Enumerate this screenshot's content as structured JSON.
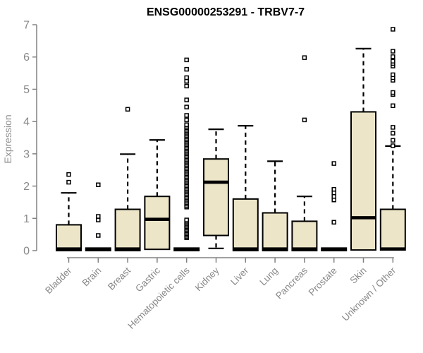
{
  "chart_data": {
    "type": "boxplot",
    "title": "ENSG00000253291 - TRBV7-7",
    "ylabel": "Expression",
    "xlabel": "",
    "ylim": [
      0,
      7
    ],
    "yticks": [
      0,
      1,
      2,
      3,
      4,
      5,
      6,
      7
    ],
    "grid": false,
    "legend": false,
    "colors": {
      "box_fill": "#ECE5C8",
      "box_stroke": "#000000",
      "median": "#000000",
      "whisker": "#000000",
      "outlier_stroke": "#000000",
      "axis": "#808080",
      "tick_label": "#888888",
      "title": "#000000"
    },
    "categories": [
      "Bladder",
      "Brain",
      "Breast",
      "Gastric",
      "Hematopoietic cells",
      "Kidney",
      "Liver",
      "Lung",
      "Pancreas",
      "Prostate",
      "Skin",
      "Unknown / Other"
    ],
    "boxes": [
      {
        "category": "Bladder",
        "whisker_low": 0,
        "q1": 0,
        "median": 0.05,
        "q3": 0.8,
        "whisker_high": 1.79,
        "outliers": [
          2.12,
          2.36
        ]
      },
      {
        "category": "Brain",
        "whisker_low": 0,
        "q1": 0,
        "median": 0.04,
        "q3": 0.08,
        "whisker_high": 0.08,
        "outliers": [
          0.47,
          0.95,
          1.06,
          2.04
        ]
      },
      {
        "category": "Breast",
        "whisker_low": 0,
        "q1": 0,
        "median": 0.05,
        "q3": 1.28,
        "whisker_high": 2.99,
        "outliers": [
          4.38
        ]
      },
      {
        "category": "Gastric",
        "whisker_low": 0.04,
        "q1": 0.04,
        "median": 0.97,
        "q3": 1.68,
        "whisker_high": 3.43,
        "outliers": []
      },
      {
        "category": "Hematopoietic cells",
        "whisker_low": 0,
        "q1": 0,
        "median": 0.04,
        "q3": 0.08,
        "whisker_high": 0.08,
        "outliers": [
          4.05,
          4.19,
          4.45,
          4.67,
          5.1,
          5.25,
          5.36,
          5.62,
          5.91
        ],
        "dense_outliers": [
          {
            "from": 1.35,
            "to": 3.9,
            "count": 55
          },
          {
            "from": 0.4,
            "to": 0.95,
            "count": 14
          }
        ]
      },
      {
        "category": "Kidney",
        "whisker_low": 0.07,
        "q1": 0.47,
        "median": 2.12,
        "q3": 2.84,
        "whisker_high": 3.76,
        "outliers": []
      },
      {
        "category": "Liver",
        "whisker_low": 0,
        "q1": 0,
        "median": 0.05,
        "q3": 1.6,
        "whisker_high": 3.87,
        "outliers": []
      },
      {
        "category": "Lung",
        "whisker_low": 0,
        "q1": 0,
        "median": 0.05,
        "q3": 1.17,
        "whisker_high": 2.77,
        "outliers": []
      },
      {
        "category": "Pancreas",
        "whisker_low": 0,
        "q1": 0,
        "median": 0.05,
        "q3": 0.91,
        "whisker_high": 1.68,
        "outliers": [
          4.05,
          5.98
        ]
      },
      {
        "category": "Prostate",
        "whisker_low": 0,
        "q1": 0,
        "median": 0.04,
        "q3": 0.08,
        "whisker_high": 0.08,
        "outliers": [
          0.88,
          1.57,
          1.68,
          1.79,
          1.9,
          2.7
        ]
      },
      {
        "category": "Skin",
        "whisker_low": 0.02,
        "q1": 0.02,
        "median": 1.02,
        "q3": 4.3,
        "whisker_high": 6.26,
        "outliers": []
      },
      {
        "category": "Unknown / Other",
        "whisker_low": 0.02,
        "q1": 0.02,
        "median": 0.05,
        "q3": 1.28,
        "whisker_high": 3.24,
        "outliers": [
          3.25,
          3.42,
          3.64,
          3.82,
          4.49,
          4.84,
          4.9,
          5.28,
          5.36,
          5.45,
          5.72,
          5.8,
          5.87,
          6.01,
          6.18,
          6.86
        ]
      }
    ]
  }
}
